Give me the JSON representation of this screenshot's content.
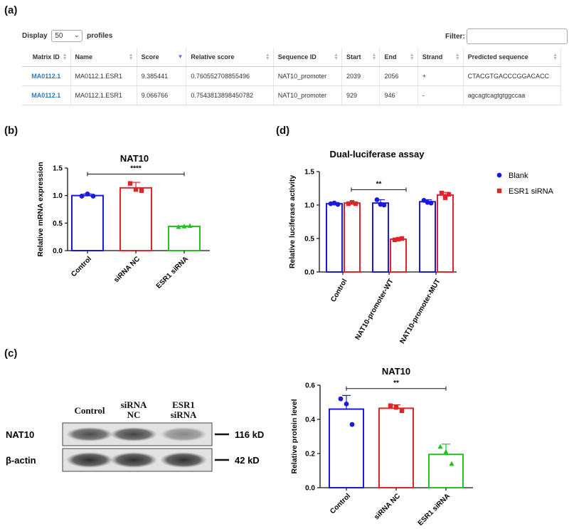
{
  "panels": {
    "a": "(a)",
    "b": "(b)",
    "c": "(c)",
    "d": "(d)"
  },
  "table_panel": {
    "display_label": "Display",
    "display_value": "50",
    "profiles_label": "profiles",
    "filter_label": "Filter:",
    "columns": [
      "Matrix ID",
      "Name",
      "Score",
      "Relative score",
      "Sequence ID",
      "Start",
      "End",
      "Strand",
      "Predicted sequence"
    ],
    "rows": [
      [
        "MA0112.1",
        "MA0112.1.ESR1",
        "9.385441",
        "0.760552708855496",
        "NAT10_promoter",
        "2039",
        "2056",
        "+",
        "CTACGTGACCCGGACACC"
      ],
      [
        "MA0112.1",
        "MA0112.1.ESR1",
        "9.066766",
        "0.7543813898450782",
        "NAT10_promoter",
        "929",
        "946",
        "-",
        "agcagtcagtgtggccaa"
      ]
    ]
  },
  "western_blot": {
    "lane_labels": [
      "Control",
      "siRNA\nNC",
      "ESR1\nsiRNA"
    ],
    "bands": [
      {
        "name": "NAT10",
        "size": "116 kD",
        "intensity": [
          0.75,
          0.8,
          0.45
        ]
      },
      {
        "name": "β-actin",
        "size": "42 kD",
        "intensity": [
          0.9,
          0.9,
          0.9
        ]
      }
    ]
  },
  "chart_data": [
    {
      "id": "b",
      "type": "bar",
      "title": "NAT10",
      "xlabel": "",
      "ylabel": "Relative mRNA expression",
      "ylim": [
        0,
        1.5
      ],
      "yticks": [
        "0.0",
        "0.5",
        "1.0",
        "1.5"
      ],
      "categories": [
        "Control",
        "siRNA NC",
        "ESR1 siRNA"
      ],
      "values": [
        1.0,
        1.14,
        0.44
      ],
      "errors": [
        0.03,
        0.1,
        0.01
      ],
      "colors": [
        "#1a1adb",
        "#e0242a",
        "#24c324"
      ],
      "markers": [
        "circle",
        "square",
        "triangle"
      ],
      "points": [
        [
          0.99,
          1.03,
          0.99
        ],
        [
          1.22,
          1.11,
          1.09
        ],
        [
          0.43,
          0.44,
          0.45
        ]
      ],
      "significance": {
        "label": "****",
        "from": 0,
        "to": 2,
        "y": 1.39
      }
    },
    {
      "id": "d",
      "type": "bar",
      "title": "Dual-luciferase assay",
      "xlabel": "",
      "ylabel": "Relative luciferase activity",
      "ylim": [
        0,
        1.5
      ],
      "yticks": [
        "0.0",
        "0.5",
        "1.0",
        "1.5"
      ],
      "categories": [
        "Control",
        "NAT10-promoter-WT",
        "NAT10-promoter-MUT"
      ],
      "series": [
        {
          "name": "Blank",
          "color": "#1a1adb",
          "marker": "circle",
          "values": [
            1.02,
            1.03,
            1.05
          ],
          "errors": [
            0.01,
            0.05,
            0.03
          ],
          "points": [
            [
              1.02,
              1.03,
              1.01
            ],
            [
              1.08,
              1.01,
              1.0
            ],
            [
              1.07,
              1.04,
              1.03
            ]
          ]
        },
        {
          "name": "ESR1 siRNA",
          "color": "#e0242a",
          "marker": "square",
          "values": [
            1.03,
            0.49,
            1.15
          ],
          "errors": [
            0.01,
            0.01,
            0.04
          ],
          "points": [
            [
              1.02,
              1.04,
              1.02
            ],
            [
              0.48,
              0.49,
              0.5
            ],
            [
              1.18,
              1.11,
              1.16
            ]
          ]
        }
      ],
      "significance": {
        "label": "**",
        "from": 0.82,
        "to": 1.18,
        "y": 1.23
      },
      "legend_position": "top-right"
    },
    {
      "id": "c",
      "type": "bar",
      "title": "NAT10",
      "xlabel": "",
      "ylabel": "Relative protein level",
      "ylim": [
        0,
        0.6
      ],
      "yticks": [
        "0.0",
        "0.2",
        "0.4",
        "0.6"
      ],
      "categories": [
        "Control",
        "siRNA NC",
        "ESR1 siRNA"
      ],
      "values": [
        0.46,
        0.465,
        0.195
      ],
      "errors": [
        0.08,
        0.02,
        0.06
      ],
      "colors": [
        "#1a1adb",
        "#e0242a",
        "#24c324"
      ],
      "markers": [
        "circle",
        "square",
        "triangle"
      ],
      "points": [
        [
          0.52,
          0.49,
          0.37
        ],
        [
          0.48,
          0.47,
          0.45
        ],
        [
          0.24,
          0.21,
          0.14
        ]
      ],
      "significance": {
        "label": "**",
        "from": 0,
        "to": 2,
        "y": 0.58
      }
    }
  ]
}
